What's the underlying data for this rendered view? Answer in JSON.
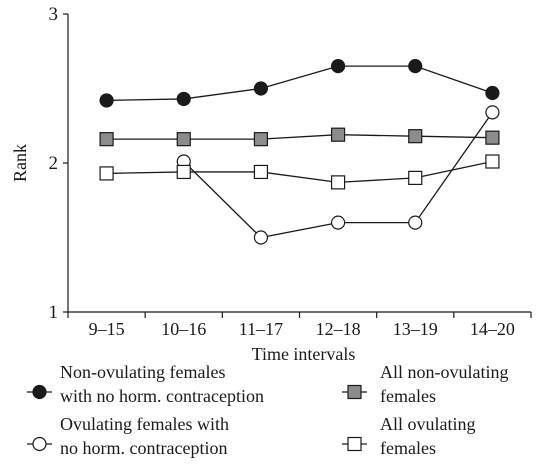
{
  "chart_data": {
    "type": "line",
    "xlabel": "Time intervals",
    "ylabel": "Rank",
    "ylim": [
      1,
      3
    ],
    "yticks": [
      1,
      2,
      3
    ],
    "categories": [
      "9–15",
      "10–16",
      "11–17",
      "12–18",
      "13–19",
      "14–20"
    ],
    "grid": false,
    "legend_position": "bottom",
    "series": [
      {
        "name": "Non-ovulating females with no horm. contraception",
        "legend_lines": [
          "Non-ovulating females",
          "with no horm. contraception"
        ],
        "marker": "filled-circle",
        "values": [
          2.42,
          2.43,
          2.5,
          2.65,
          2.65,
          2.47
        ]
      },
      {
        "name": "All non-ovulating females",
        "legend_lines": [
          "All non-ovulating",
          "females"
        ],
        "marker": "gray-square",
        "values": [
          2.16,
          2.16,
          2.16,
          2.19,
          2.18,
          2.17
        ]
      },
      {
        "name": "Ovulating females with no horm. contraception",
        "legend_lines": [
          "Ovulating females with",
          "no horm. contraception"
        ],
        "marker": "open-circle",
        "values": [
          null,
          2.01,
          1.5,
          1.6,
          1.6,
          2.34
        ]
      },
      {
        "name": "All ovulating females",
        "legend_lines": [
          "All ovulating",
          "females"
        ],
        "marker": "open-square",
        "values": [
          1.93,
          1.94,
          1.94,
          1.87,
          1.9,
          2.01
        ]
      }
    ],
    "colors": {
      "line": "#1a1a1a",
      "filled": "#1a1a1a",
      "gray": "#8c8c8c",
      "open": "#ffffff"
    }
  }
}
